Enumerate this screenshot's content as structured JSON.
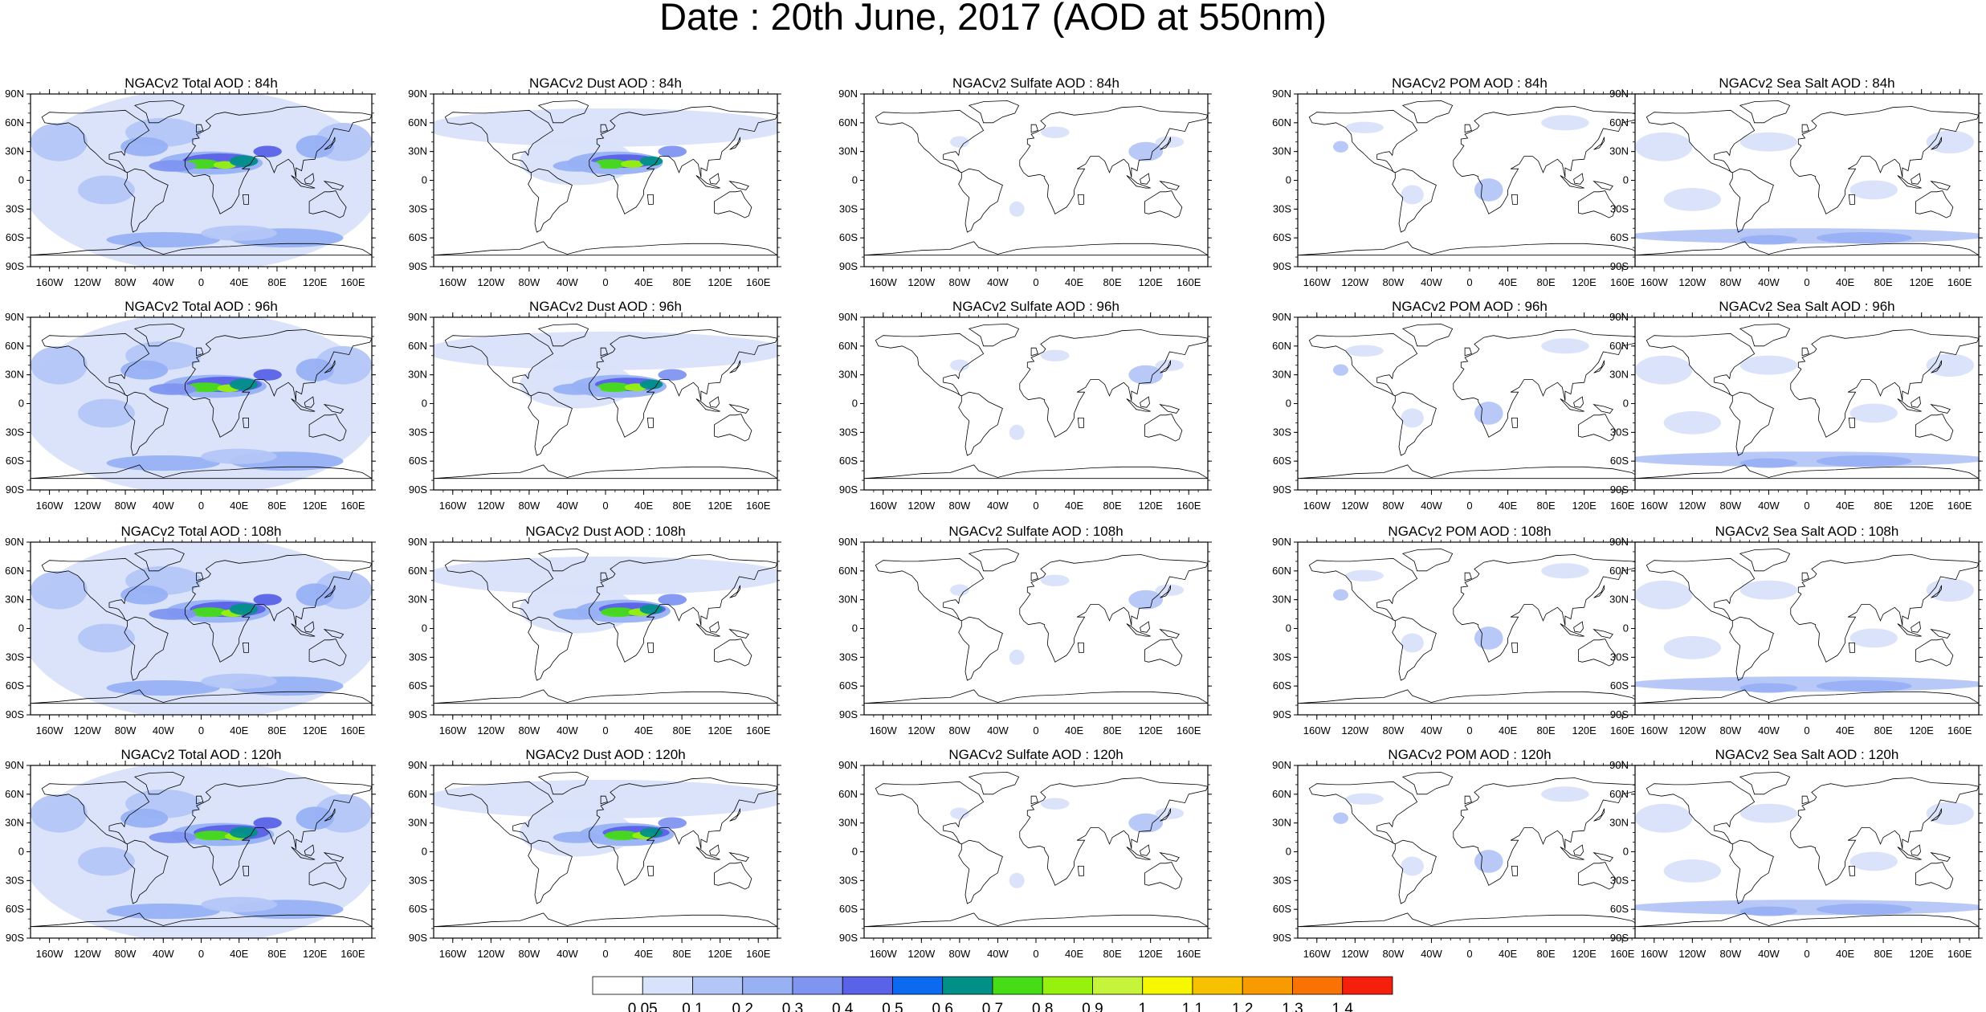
{
  "title": "Date : 20th June, 2017 (AOD at 550nm)",
  "lat_labels": [
    "90N",
    "60N",
    "30N",
    "0",
    "30S",
    "60S",
    "90S"
  ],
  "lon_labels": [
    "160W",
    "120W",
    "80W",
    "40W",
    "0",
    "40E",
    "80E",
    "120E",
    "160E"
  ],
  "rows": [
    {
      "forecast_hour": "84h",
      "titles": [
        "NGACv2 Total AOD : 84h",
        "NGACv2 Dust AOD : 84h",
        "NGACv2 Sulfate AOD : 84h",
        "NGACv2 POM AOD : 84h",
        "NGACv2 Sea Salt AOD : 84h"
      ]
    },
    {
      "forecast_hour": "96h",
      "titles": [
        "NGACv2 Total AOD : 96h",
        "NGACv2 Dust AOD : 96h",
        "NGACv2 Sulfate AOD : 96h",
        "NGACv2 POM AOD : 96h",
        "NGACv2 Sea Salt AOD : 96h"
      ]
    },
    {
      "forecast_hour": "108h",
      "titles": [
        "NGACv2 Total AOD : 108h",
        "NGACv2 Dust AOD : 108h",
        "NGACv2 Sulfate AOD : 108h",
        "NGACv2 POM AOD : 108h",
        "NGACv2 Sea Salt AOD : 108h"
      ]
    },
    {
      "forecast_hour": "120h",
      "titles": [
        "NGACv2 Total AOD : 120h",
        "NGACv2 Dust AOD : 120h",
        "NGACv2 Sulfate AOD : 120h",
        "NGACv2 POM AOD : 120h",
        "NGACv2 Sea Salt  AOD : 120h"
      ]
    }
  ],
  "species_fields": {
    "total": "widespread background AOD 0.05-0.3 over oceans and land, Saharan dust plume over North Africa and Arabia reaching 0.6-1.0, elevated Southern Ocean sea salt band",
    "dust": "Saharan and Arabian dust plume up to 0.9, transatlantic transport 0.1-0.3, low background north of 40N",
    "sulfate": "mostly below 0.05, patches 0.05-0.2 over eastern China, eastern United States, Europe",
    "pom": "mostly below 0.05, patches 0.05-0.2 over Central Africa, South America, Siberia, Canada",
    "seasalt": "background 0.05-0.2 over oceans, Southern Ocean band 0.2-0.4"
  },
  "colorbar": {
    "label_values": [
      "0.05",
      "0.1",
      "0.2",
      "0.3",
      "0.4",
      "0.5",
      "0.6",
      "0.7",
      "0.8",
      "0.9",
      "1",
      "1.1",
      "1.2",
      "1.3",
      "1.4"
    ],
    "colors": [
      "#ffffff",
      "#d9e2fb",
      "#b4c6f7",
      "#98b1f4",
      "#7f95f0",
      "#5a62e7",
      "#0c6af0",
      "#009088",
      "#46dc16",
      "#96f20d",
      "#c5f43b",
      "#f7f700",
      "#f8c100",
      "#f79b00",
      "#f87304",
      "#f51f0c"
    ]
  }
}
